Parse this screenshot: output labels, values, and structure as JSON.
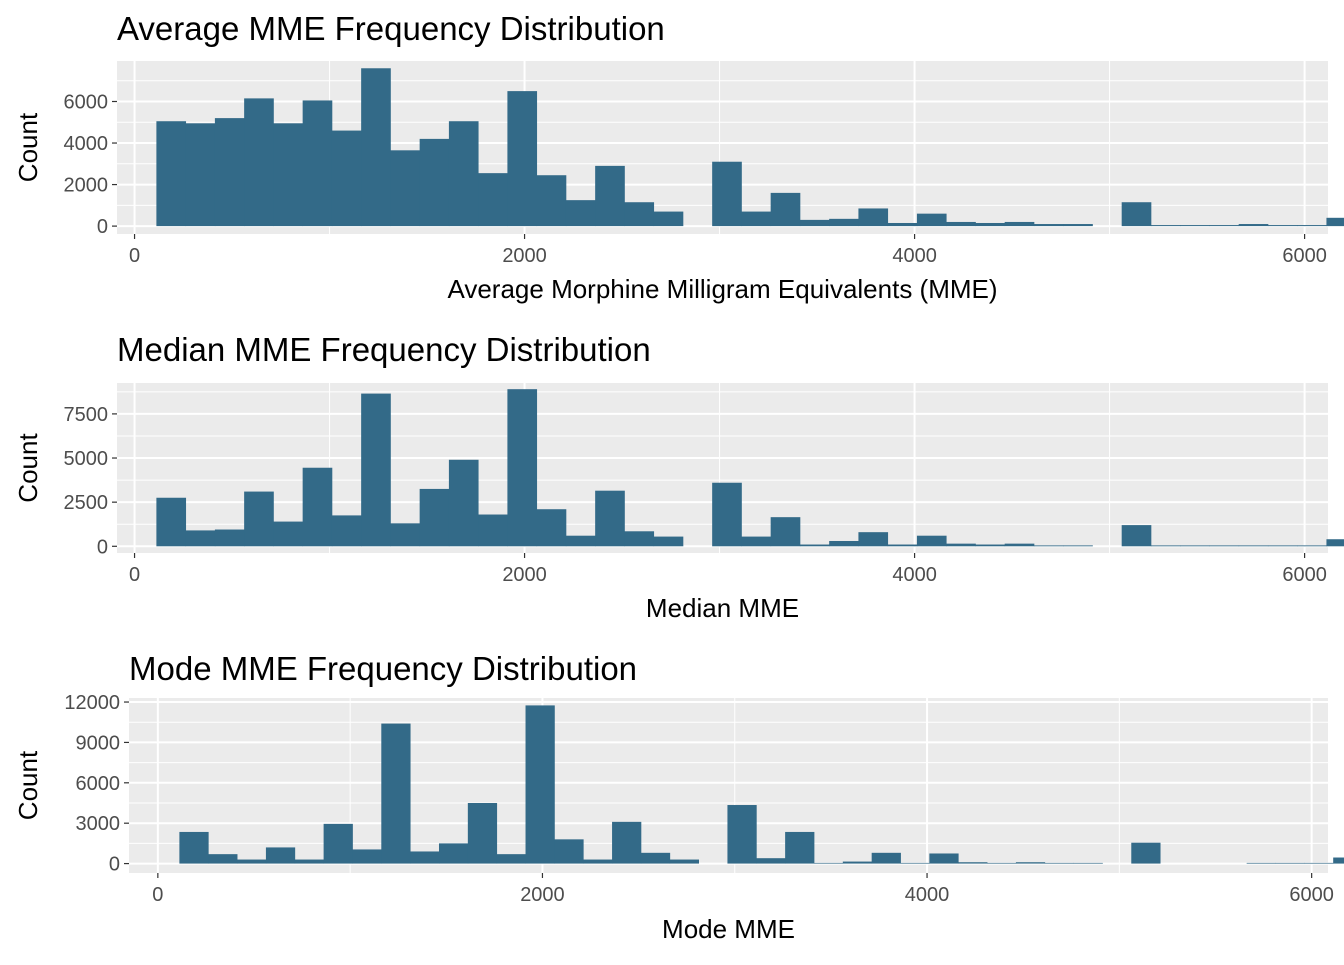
{
  "chart_data": [
    {
      "type": "bar",
      "title": "Average MME Frequency Distribution",
      "xlabel": "Average Morphine Milligram Equivalents (MME)",
      "ylabel": "Count",
      "xlim": [
        -90,
        6120
      ],
      "ylim": [
        -380,
        7950
      ],
      "xticks": [
        0,
        2000,
        4000,
        6000
      ],
      "yticks": [
        0,
        2000,
        4000,
        6000
      ],
      "bar_color": "#336A88",
      "bin_width": 150,
      "bin_start": 112,
      "values": [
        5050,
        4950,
        5200,
        6150,
        4950,
        6050,
        4600,
        7600,
        3650,
        4200,
        5050,
        2550,
        6500,
        2450,
        1250,
        2900,
        1150,
        700,
        0,
        3100,
        700,
        1600,
        300,
        350,
        850,
        150,
        600,
        200,
        150,
        200,
        100,
        100,
        0,
        1150,
        50,
        50,
        50,
        100,
        50,
        50,
        400
      ]
    },
    {
      "type": "bar",
      "title": "Median MME Frequency Distribution",
      "xlabel": "Median MME",
      "ylabel": "Count",
      "xlim": [
        -90,
        6120
      ],
      "ylim": [
        -380,
        9250
      ],
      "xticks": [
        0,
        2000,
        4000,
        6000
      ],
      "yticks": [
        0,
        2500,
        5000,
        7500
      ],
      "bar_color": "#336A88",
      "bin_width": 150,
      "bin_start": 112,
      "values": [
        2750,
        900,
        950,
        3100,
        1400,
        4450,
        1750,
        8650,
        1300,
        3250,
        4900,
        1800,
        8900,
        2100,
        600,
        3150,
        850,
        550,
        0,
        3600,
        550,
        1650,
        100,
        300,
        800,
        100,
        600,
        150,
        100,
        150,
        50,
        50,
        0,
        1200,
        50,
        50,
        50,
        50,
        50,
        50,
        400
      ]
    },
    {
      "type": "bar",
      "title": "Mode MME Frequency Distribution",
      "xlabel": "Mode MME",
      "ylabel": "Count",
      "xlim": [
        -150,
        6085
      ],
      "ylim": [
        -700,
        12300
      ],
      "xticks": [
        0,
        2000,
        4000,
        6000
      ],
      "yticks": [
        0,
        3000,
        6000,
        9000,
        12000
      ],
      "bar_color": "#336A88",
      "bin_width": 150,
      "bin_start": 112,
      "values": [
        2350,
        700,
        300,
        1200,
        300,
        2950,
        1050,
        10400,
        900,
        1500,
        4500,
        700,
        11750,
        1800,
        300,
        3100,
        800,
        300,
        0,
        4350,
        400,
        2350,
        50,
        150,
        800,
        50,
        750,
        100,
        50,
        100,
        50,
        50,
        0,
        1550,
        0,
        0,
        0,
        50,
        50,
        50,
        450
      ]
    }
  ]
}
